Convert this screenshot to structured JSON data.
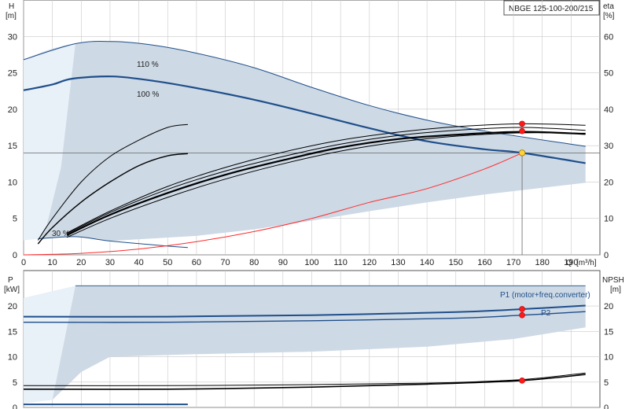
{
  "chart_data": [
    {
      "type": "line",
      "title": "NBGE 125-100-200/215",
      "ylabel_left": "H",
      "yunit_left": "[m]",
      "ylabel_right": "eta",
      "yunit_right": "[%]",
      "xlabel": "Q",
      "xunit": "[m³/h]",
      "xlim": [
        0,
        200
      ],
      "ylim_left": [
        0,
        35
      ],
      "ylim_right": [
        0,
        70
      ],
      "xticks": [
        0,
        10,
        20,
        30,
        40,
        50,
        60,
        70,
        80,
        90,
        100,
        110,
        120,
        130,
        140,
        150,
        160,
        170,
        180,
        190
      ],
      "yticks_left": [
        0,
        5,
        10,
        15,
        20,
        25,
        30
      ],
      "yticks_right": [
        0,
        10,
        20,
        30,
        40,
        50,
        60
      ],
      "annotations": [
        "110 %",
        "100 %",
        "30 %"
      ],
      "shaded_region": {
        "upper_H": [
          [
            0,
            26.8
          ],
          [
            5,
            27.6
          ],
          [
            10,
            28.3
          ],
          [
            18,
            29.0
          ],
          [
            31,
            29.3
          ],
          [
            45,
            28.8
          ],
          [
            60,
            27.7
          ],
          [
            80,
            25.7
          ],
          [
            100,
            23.0
          ],
          [
            120,
            20.5
          ],
          [
            140,
            18.5
          ],
          [
            160,
            17.0
          ],
          [
            175,
            16.0
          ],
          [
            195,
            14.9
          ]
        ],
        "lower_H": [
          [
            5,
            2.2
          ],
          [
            18,
            2.5
          ],
          [
            30,
            1.9
          ],
          [
            60,
            2.6
          ],
          [
            80,
            3.5
          ],
          [
            100,
            4.7
          ],
          [
            120,
            6.0
          ],
          [
            140,
            7.2
          ],
          [
            160,
            8.3
          ],
          [
            180,
            9.2
          ],
          [
            195,
            9.9
          ]
        ]
      },
      "series": [
        {
          "name": "110 %",
          "color": "#1f4e8a",
          "width": 1,
          "points": [
            [
              0,
              26.8
            ],
            [
              18,
              29.0
            ],
            [
              31,
              29.3
            ],
            [
              45,
              28.8
            ],
            [
              60,
              27.7
            ],
            [
              80,
              25.7
            ],
            [
              100,
              23.0
            ],
            [
              120,
              20.5
            ],
            [
              140,
              18.5
            ],
            [
              160,
              17.0
            ],
            [
              195,
              14.9
            ]
          ]
        },
        {
          "name": "100 %",
          "color": "#1f4e8a",
          "width": 2.2,
          "points": [
            [
              0,
              22.6
            ],
            [
              10,
              23.4
            ],
            [
              17,
              24.2
            ],
            [
              31,
              24.5
            ],
            [
              45,
              23.9
            ],
            [
              60,
              22.9
            ],
            [
              80,
              21.3
            ],
            [
              100,
              19.4
            ],
            [
              120,
              17.4
            ],
            [
              140,
              15.6
            ],
            [
              160,
              14.5
            ],
            [
              173,
              14.0
            ],
            [
              195,
              12.6
            ]
          ]
        },
        {
          "name": "30 %",
          "color": "#1f4e8a",
          "width": 1,
          "points": [
            [
              5,
              2.2
            ],
            [
              18,
              2.5
            ],
            [
              30,
              1.9
            ],
            [
              50,
              1.2
            ],
            [
              57,
              1.0
            ]
          ]
        },
        {
          "name": "eta 100 %",
          "color": "#000000",
          "width": 2.2,
          "points": [
            [
              15,
              5.4
            ],
            [
              30,
              11.0
            ],
            [
              50,
              17.0
            ],
            [
              70,
              22.0
            ],
            [
              90,
              26.0
            ],
            [
              110,
              29.5
            ],
            [
              130,
              31.8
            ],
            [
              150,
              33.0
            ],
            [
              173,
              33.8
            ],
            [
              195,
              33.2
            ]
          ]
        },
        {
          "name": "eta 110 % upper",
          "color": "#000000",
          "width": 1,
          "points": [
            [
              15,
              6.0
            ],
            [
              30,
              12.0
            ],
            [
              50,
              18.8
            ],
            [
              70,
              24.0
            ],
            [
              90,
              28.2
            ],
            [
              110,
              31.5
            ],
            [
              130,
              33.7
            ],
            [
              150,
              35.2
            ],
            [
              173,
              36.0
            ],
            [
              195,
              35.6
            ]
          ]
        },
        {
          "name": "eta 110 % lower",
          "color": "#000000",
          "width": 1,
          "points": [
            [
              15,
              4.8
            ],
            [
              30,
              10.0
            ],
            [
              50,
              15.8
            ],
            [
              70,
              20.8
            ],
            [
              90,
              25.0
            ],
            [
              110,
              28.5
            ],
            [
              130,
              31.0
            ],
            [
              150,
              32.6
            ],
            [
              173,
              33.5
            ],
            [
              195,
              33.4
            ]
          ]
        },
        {
          "name": "eta 110 % mid",
          "color": "#000000",
          "width": 1,
          "points": [
            [
              15,
              5.8
            ],
            [
              30,
              11.6
            ],
            [
              50,
              18.0
            ],
            [
              70,
              23.0
            ],
            [
              90,
              27.0
            ],
            [
              110,
              30.4
            ],
            [
              130,
              32.8
            ],
            [
              150,
              34.2
            ],
            [
              173,
              35.0
            ],
            [
              195,
              34.2
            ]
          ]
        },
        {
          "name": "eta 30 % a",
          "color": "#000000",
          "width": 1,
          "points": [
            [
              5,
              4.0
            ],
            [
              10,
              10.0
            ],
            [
              20,
              20.0
            ],
            [
              30,
              27.0
            ],
            [
              40,
              31.5
            ],
            [
              50,
              35.0
            ],
            [
              57,
              35.8
            ]
          ]
        },
        {
          "name": "eta 30 % b",
          "color": "#000000",
          "width": 1.4,
          "points": [
            [
              5,
              3.0
            ],
            [
              10,
              7.5
            ],
            [
              20,
              14.5
            ],
            [
              30,
              20.0
            ],
            [
              40,
              24.5
            ],
            [
              50,
              27.2
            ],
            [
              57,
              27.8
            ]
          ]
        },
        {
          "name": "system curve",
          "color": "#ff2a2a",
          "width": 1,
          "points": [
            [
              0,
              0
            ],
            [
              20,
              0.2
            ],
            [
              40,
              0.8
            ],
            [
              60,
              1.8
            ],
            [
              80,
              3.2
            ],
            [
              100,
              5.0
            ],
            [
              120,
              7.2
            ],
            [
              140,
              9.1
            ],
            [
              160,
              11.8
            ],
            [
              173,
              14.0
            ]
          ]
        }
      ],
      "duty_point": {
        "x": 173,
        "y": 14.0
      },
      "red_markers_H": [
        [
          173,
          18.0
        ],
        [
          173,
          17.0
        ]
      ]
    },
    {
      "type": "line",
      "ylabel_left": "P",
      "yunit_left": "[kW]",
      "ylabel_right": "NPSH",
      "yunit_right": "[m]",
      "xlim": [
        0,
        200
      ],
      "ylim_left": [
        0,
        27
      ],
      "ylim_right": [
        0,
        27
      ],
      "yticks_left": [
        0,
        5,
        10,
        15,
        20
      ],
      "yticks_right": [
        0,
        5,
        10,
        15,
        20
      ],
      "annotations": [
        "P1 (motor+freq.converter)",
        "P2"
      ],
      "shaded_region": {
        "upper": [
          [
            0,
            21.6
          ],
          [
            10,
            22.0
          ],
          [
            18,
            24.0
          ],
          [
            195,
            24.0
          ]
        ],
        "lower": [
          [
            10,
            1.5
          ],
          [
            20,
            7.0
          ],
          [
            30,
            10.0
          ],
          [
            60,
            10.5
          ],
          [
            100,
            11.0
          ],
          [
            140,
            12.0
          ],
          [
            170,
            13.5
          ],
          [
            195,
            15.8
          ]
        ]
      },
      "series": [
        {
          "name": "P1 (motor+freq.converter)",
          "color": "#1f4e8a",
          "width": 2,
          "points": [
            [
              0,
              17.9
            ],
            [
              50,
              17.9
            ],
            [
              100,
              18.2
            ],
            [
              150,
              18.8
            ],
            [
              173,
              19.4
            ],
            [
              195,
              20.1
            ]
          ]
        },
        {
          "name": "P2",
          "color": "#1f4e8a",
          "width": 1.4,
          "points": [
            [
              0,
              16.8
            ],
            [
              50,
              16.8
            ],
            [
              100,
              17.1
            ],
            [
              150,
              17.6
            ],
            [
              173,
              18.2
            ],
            [
              195,
              18.9
            ]
          ]
        },
        {
          "name": "NPSH",
          "color": "#000000",
          "width": 1.6,
          "points": [
            [
              0,
              3.6
            ],
            [
              50,
              3.6
            ],
            [
              100,
              4.0
            ],
            [
              140,
              4.6
            ],
            [
              173,
              5.3
            ],
            [
              195,
              6.5
            ]
          ]
        },
        {
          "name": "NPSH thin",
          "color": "#000000",
          "width": 1,
          "points": [
            [
              0,
              4.3
            ],
            [
              50,
              4.3
            ],
            [
              100,
              4.5
            ],
            [
              140,
              4.8
            ],
            [
              173,
              5.5
            ],
            [
              195,
              6.8
            ]
          ]
        },
        {
          "name": "P 30 %",
          "color": "#1f4e8a",
          "width": 2,
          "points": [
            [
              0,
              0.6
            ],
            [
              57,
              0.6
            ]
          ]
        }
      ],
      "red_markers": [
        [
          173,
          19.4
        ],
        [
          173,
          18.2
        ],
        [
          173,
          5.3
        ]
      ]
    }
  ]
}
